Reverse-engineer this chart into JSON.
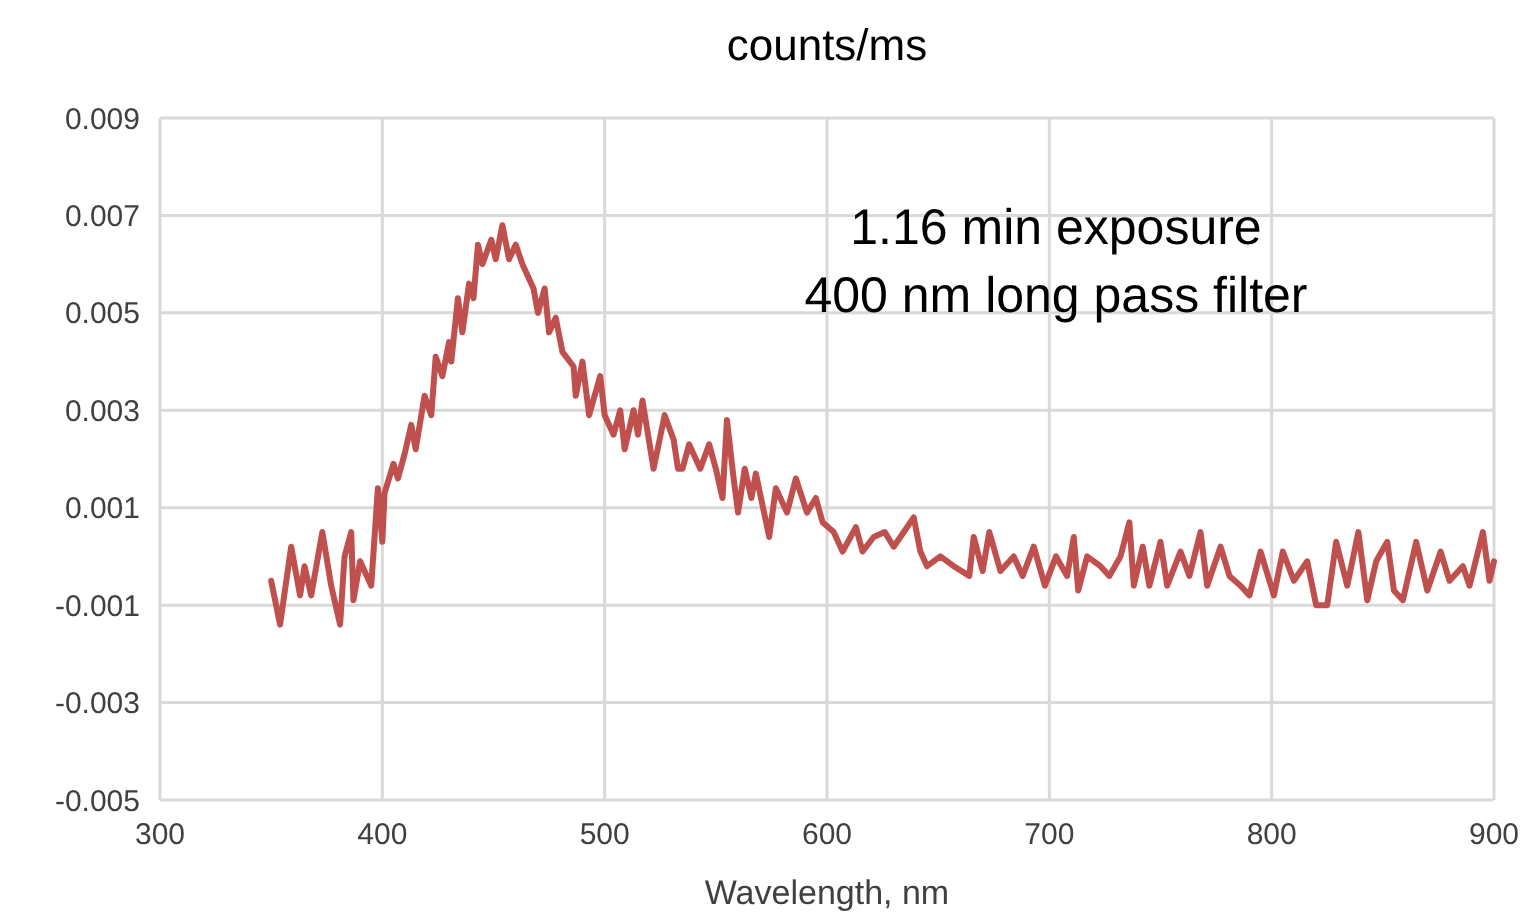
{
  "chart_data": {
    "type": "line",
    "title": "counts/ms",
    "xlabel": "Wavelength, nm",
    "annotations": [
      "1.16 min exposure",
      "400 nm long pass filter"
    ],
    "xlim": [
      300,
      900
    ],
    "xticks": [
      300,
      400,
      500,
      600,
      700,
      800,
      900
    ],
    "ylim": [
      -0.005,
      0.009
    ],
    "yticks": [
      -0.005,
      -0.003,
      -0.001,
      0.001,
      0.003,
      0.005,
      0.007,
      0.009
    ],
    "grid": true,
    "series": [
      {
        "color": "#c0504d",
        "x": [
          350,
          354,
          359,
          363,
          365,
          368,
          373,
          377,
          381,
          383,
          386,
          387,
          390,
          395,
          398,
          400,
          401,
          405,
          407,
          410,
          413,
          415,
          419,
          422,
          424,
          427,
          430,
          431,
          434,
          436,
          439,
          441,
          443,
          445,
          449,
          451,
          454,
          457,
          460,
          463,
          468,
          470,
          473,
          475,
          478,
          481,
          486,
          487,
          490,
          493,
          498,
          500,
          504,
          507,
          509,
          513,
          515,
          517,
          522,
          527,
          531,
          533,
          535,
          538,
          543,
          547,
          550,
          553,
          555,
          558,
          560,
          563,
          566,
          568,
          574,
          577,
          582,
          586,
          591,
          595,
          598,
          603,
          607,
          613,
          616,
          621,
          626,
          630,
          639,
          642,
          645,
          651,
          657,
          664,
          666,
          670,
          673,
          678,
          684,
          688,
          693,
          698,
          703,
          708,
          711,
          713,
          717,
          723,
          727,
          732,
          736,
          738,
          742,
          745,
          750,
          753,
          759,
          763,
          768,
          771,
          777,
          781,
          786,
          790,
          795,
          801,
          805,
          810,
          816,
          820,
          825,
          829,
          834,
          839,
          843,
          847,
          852,
          855,
          859,
          865,
          870,
          876,
          880,
          886,
          889,
          895,
          898,
          900
        ],
        "values": [
          -0.0005,
          -0.0014,
          0.0002,
          -0.0008,
          -0.0002,
          -0.0008,
          0.0005,
          -0.0006,
          -0.0014,
          0.0,
          0.0005,
          -0.0009,
          -0.0001,
          -0.0006,
          0.0014,
          0.0003,
          0.0013,
          0.0019,
          0.0016,
          0.0021,
          0.0027,
          0.0022,
          0.0033,
          0.0029,
          0.0041,
          0.0037,
          0.0044,
          0.004,
          0.0053,
          0.0046,
          0.0056,
          0.0053,
          0.0064,
          0.006,
          0.0065,
          0.0061,
          0.0068,
          0.0061,
          0.0064,
          0.006,
          0.0055,
          0.005,
          0.0055,
          0.0046,
          0.0049,
          0.0042,
          0.0039,
          0.0033,
          0.004,
          0.0029,
          0.0037,
          0.0029,
          0.0025,
          0.003,
          0.0022,
          0.003,
          0.0025,
          0.0032,
          0.0018,
          0.0029,
          0.0024,
          0.0018,
          0.0018,
          0.0023,
          0.0018,
          0.0023,
          0.0018,
          0.0012,
          0.0028,
          0.0016,
          0.0009,
          0.0018,
          0.0012,
          0.0017,
          0.0004,
          0.0014,
          0.0009,
          0.0016,
          0.0009,
          0.0012,
          0.0007,
          0.0005,
          0.0001,
          0.0006,
          0.0001,
          0.0004,
          0.0005,
          0.0002,
          0.0008,
          0.0001,
          -0.0002,
          0.0,
          -0.0002,
          -0.0004,
          0.0004,
          -0.0003,
          0.0005,
          -0.0003,
          0.0,
          -0.0004,
          0.0002,
          -0.0006,
          0.0,
          -0.0004,
          0.0004,
          -0.0007,
          0.0,
          -0.0002,
          -0.0004,
          0.0,
          0.0007,
          -0.0006,
          0.0002,
          -0.0006,
          0.0003,
          -0.0006,
          0.0001,
          -0.0004,
          0.0005,
          -0.0006,
          0.0002,
          -0.0004,
          -0.0006,
          -0.0008,
          0.0001,
          -0.0008,
          0.0001,
          -0.0005,
          -0.0001,
          -0.001,
          -0.001,
          0.0003,
          -0.0006,
          0.0005,
          -0.0009,
          -0.0001,
          0.0003,
          -0.0007,
          -0.0009,
          0.0003,
          -0.0007,
          0.0001,
          -0.0005,
          -0.0002,
          -0.0006,
          0.0005,
          -0.0005,
          -0.0001
        ]
      }
    ]
  }
}
